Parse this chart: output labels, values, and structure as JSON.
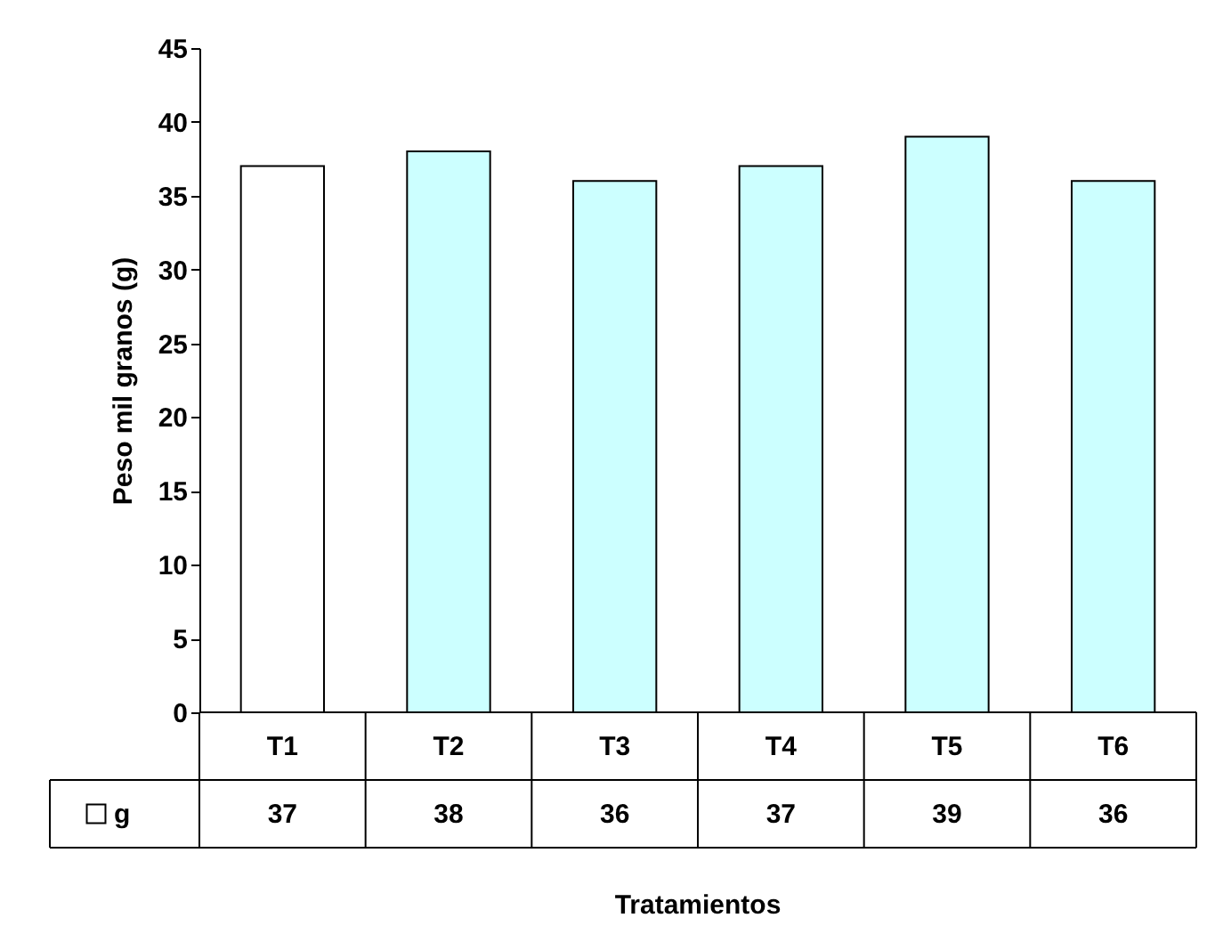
{
  "chart_data": {
    "type": "bar",
    "xlabel": "Tratamientos",
    "ylabel": "Peso mil granos (g)",
    "categories": [
      "T1",
      "T2",
      "T3",
      "T4",
      "T5",
      "T6"
    ],
    "series": [
      {
        "name": "g",
        "color": "#ffffff",
        "colors": [
          "#ffffff",
          "#ccffff",
          "#ccffff",
          "#ccffff",
          "#ccffff",
          "#ccffff"
        ],
        "values": [
          37,
          38,
          36,
          37,
          39,
          36
        ]
      }
    ],
    "ylim": [
      0,
      45
    ],
    "yticks": [
      0,
      5,
      10,
      15,
      20,
      25,
      30,
      35,
      40,
      45
    ],
    "grid": false,
    "data_labels": true
  }
}
